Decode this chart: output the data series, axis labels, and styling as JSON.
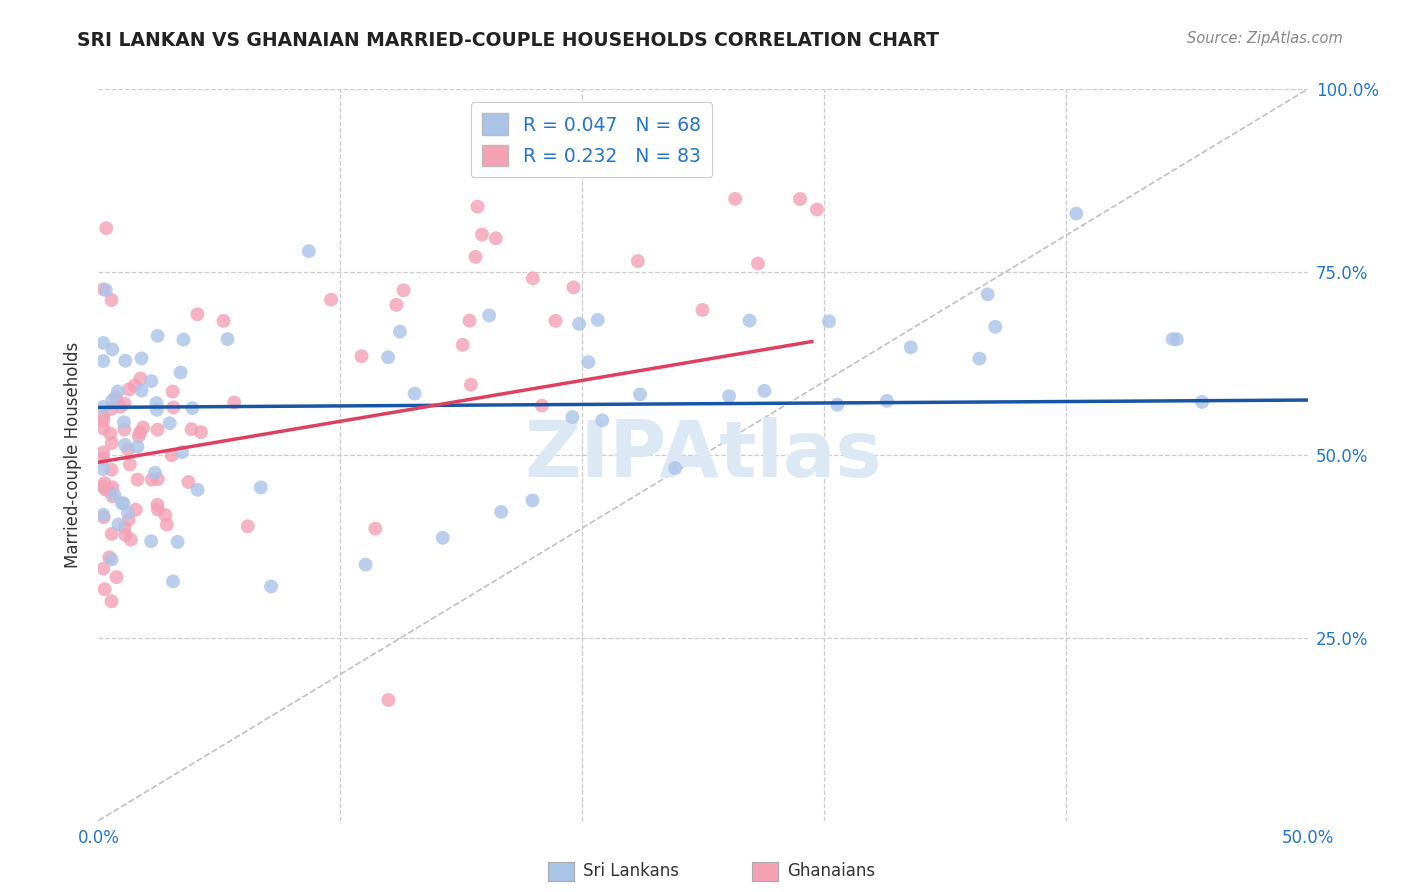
{
  "title": "SRI LANKAN VS GHANAIAN MARRIED-COUPLE HOUSEHOLDS CORRELATION CHART",
  "source": "Source: ZipAtlas.com",
  "ylabel": "Married-couple Households",
  "xlabel_sri": "Sri Lankans",
  "xlabel_gha": "Ghanaians",
  "xlim": [
    0.0,
    0.5
  ],
  "ylim": [
    0.0,
    1.0
  ],
  "xtick_positions": [
    0.0,
    0.1,
    0.2,
    0.3,
    0.4,
    0.5
  ],
  "xtick_labels": [
    "0.0%",
    "",
    "",
    "",
    "",
    "50.0%"
  ],
  "ytick_positions": [
    0.0,
    0.25,
    0.5,
    0.75,
    1.0
  ],
  "ytick_labels_right": [
    "",
    "25.0%",
    "50.0%",
    "75.0%",
    "100.0%"
  ],
  "sri_R": 0.047,
  "sri_N": 68,
  "gha_R": 0.232,
  "gha_N": 83,
  "sri_color": "#aac4e8",
  "gha_color": "#f4a0b5",
  "sri_line_color": "#1955a5",
  "gha_line_color": "#e04060",
  "diag_color": "#bbbbbb",
  "grid_color": "#cccccc",
  "title_color": "#222222",
  "source_color": "#888888",
  "axis_label_color": "#333333",
  "tick_color": "#2277cc",
  "watermark_color": "#dde8f5",
  "sri_trend_x0": 0.0,
  "sri_trend_x1": 0.5,
  "sri_trend_y0": 0.565,
  "sri_trend_y1": 0.575,
  "gha_trend_x0": 0.0,
  "gha_trend_x1": 0.295,
  "gha_trend_y0": 0.49,
  "gha_trend_y1": 0.655
}
